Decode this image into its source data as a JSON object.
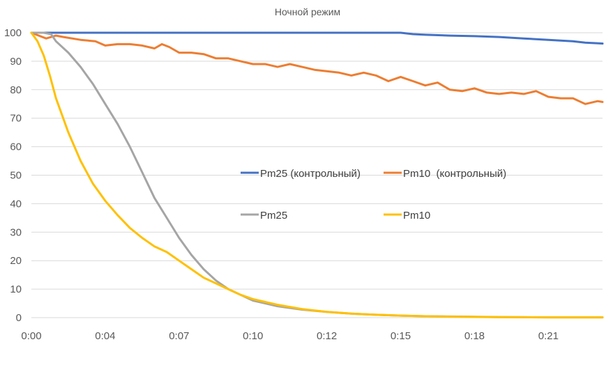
{
  "chart_data": {
    "type": "line",
    "title": "Ночной режим",
    "xlabel": "",
    "ylabel": "",
    "x_unit": "minutes",
    "xlim": [
      0,
      23.2
    ],
    "ylim": [
      0,
      100
    ],
    "y_ticks": [
      0,
      10,
      20,
      30,
      40,
      50,
      60,
      70,
      80,
      90,
      100
    ],
    "x_tick_labels": [
      {
        "value": 0,
        "label": "0:00"
      },
      {
        "value": 3,
        "label": "0:04"
      },
      {
        "value": 6,
        "label": "0:07"
      },
      {
        "value": 9,
        "label": "0:10"
      },
      {
        "value": 12,
        "label": "0:12"
      },
      {
        "value": 15,
        "label": "0:15"
      },
      {
        "value": 18,
        "label": "0:18"
      },
      {
        "value": 21,
        "label": "0:21"
      }
    ],
    "grid": "horizontal",
    "legend_position": "center",
    "series": [
      {
        "name": "Pm25 (контрольный)",
        "color": "#4472C4",
        "x": [
          0,
          1,
          2,
          4,
          6,
          8,
          10,
          12,
          14,
          15,
          15.5,
          16,
          17,
          18,
          19,
          20,
          21,
          22,
          22.5,
          23,
          23.2
        ],
        "y": [
          100,
          100,
          100,
          100,
          100,
          100,
          100,
          100,
          100,
          100,
          99.5,
          99.3,
          99,
          98.8,
          98.5,
          98,
          97.5,
          97,
          96.5,
          96.3,
          96.2
        ]
      },
      {
        "name": "Pm10  (контрольный)",
        "color": "#ED7D31",
        "x": [
          0,
          0.3,
          0.6,
          1,
          1.3,
          2,
          2.6,
          3,
          3.5,
          4,
          4.5,
          5,
          5.3,
          5.6,
          6,
          6.5,
          7,
          7.5,
          8,
          8.5,
          9,
          9.5,
          10,
          10.5,
          11,
          11.5,
          12,
          12.5,
          13,
          13.5,
          14,
          14.5,
          15,
          15.5,
          16,
          16.5,
          17,
          17.5,
          18,
          18.5,
          19,
          19.5,
          20,
          20.5,
          21,
          21.5,
          22,
          22.5,
          23,
          23.2
        ],
        "y": [
          100,
          99,
          98,
          99,
          98.5,
          97.5,
          97,
          95.5,
          96,
          96,
          95.5,
          94.5,
          96,
          95,
          93,
          93,
          92.5,
          91,
          91,
          90,
          89,
          89,
          88,
          89,
          88,
          87,
          86.5,
          86,
          85,
          86,
          85,
          83,
          84.5,
          83,
          81.5,
          82.5,
          80,
          79.5,
          80.5,
          79,
          78.5,
          79,
          78.5,
          79.5,
          77.5,
          77,
          77,
          75,
          76,
          75.7
        ]
      },
      {
        "name": "Pm25",
        "color": "#A5A5A5",
        "x": [
          0,
          0.5,
          0.8,
          1,
          1.5,
          2,
          2.5,
          3,
          3.5,
          4,
          4.5,
          5,
          5.5,
          6,
          6.5,
          7,
          7.5,
          8,
          8.5,
          9,
          9.5,
          10,
          11,
          12,
          13,
          14,
          15,
          16,
          17,
          18,
          19,
          20,
          21,
          22,
          23,
          23.2
        ],
        "y": [
          100,
          100,
          99.5,
          97,
          93,
          88,
          82,
          75,
          68,
          60,
          51,
          42,
          35,
          28,
          22,
          17,
          13,
          10,
          8,
          6,
          5,
          4,
          2.8,
          2,
          1.4,
          1,
          0.7,
          0.5,
          0.4,
          0.3,
          0.2,
          0.15,
          0.1,
          0.1,
          0.1,
          0.1
        ]
      },
      {
        "name": "Pm10",
        "color": "#FFC000",
        "x": [
          0,
          0.25,
          0.5,
          0.75,
          1,
          1.5,
          2,
          2.5,
          3,
          3.5,
          4,
          4.5,
          5,
          5.5,
          6,
          6.5,
          7,
          7.5,
          8,
          8.5,
          9,
          9.5,
          10,
          11,
          12,
          13,
          14,
          15,
          16,
          17,
          18,
          19,
          20,
          21,
          22,
          23,
          23.2
        ],
        "y": [
          100,
          97,
          92,
          85,
          77,
          65,
          55,
          47,
          41,
          36,
          31.5,
          28,
          25,
          23,
          20,
          17,
          14,
          12,
          10,
          8,
          6.5,
          5.5,
          4.5,
          3,
          2,
          1.4,
          1,
          0.7,
          0.5,
          0.35,
          0.25,
          0.2,
          0.15,
          0.1,
          0.1,
          0.1,
          0.1
        ]
      }
    ]
  }
}
